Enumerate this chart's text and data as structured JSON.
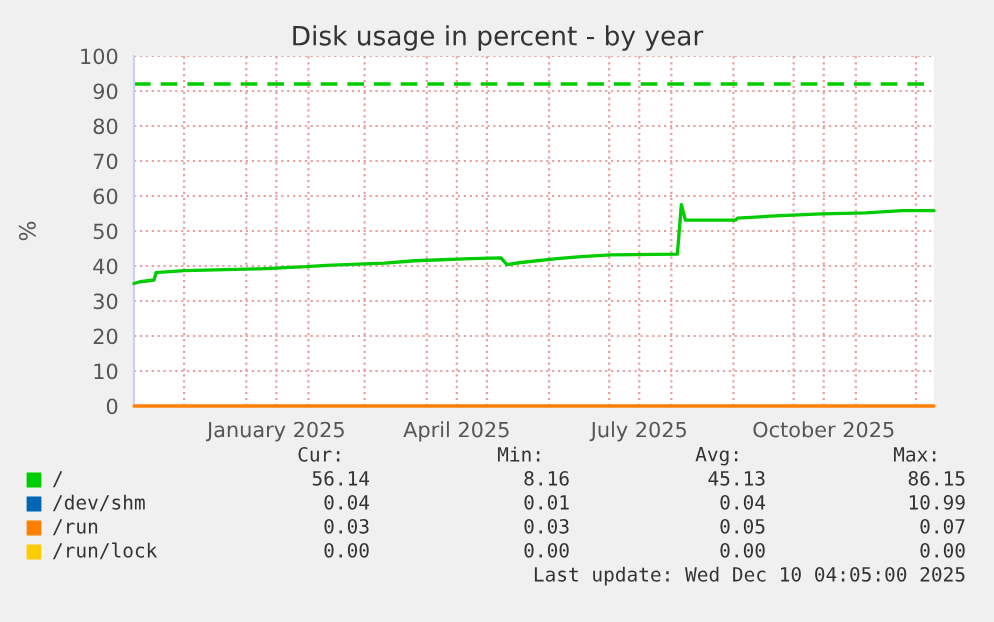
{
  "chart_data": {
    "type": "line",
    "title": "Disk usage in percent - by year",
    "ylabel": "%",
    "xlim": [
      "2024-11-06",
      "2025-12-10"
    ],
    "ylim": [
      0,
      100
    ],
    "yticks": [
      0,
      10,
      20,
      30,
      40,
      50,
      60,
      70,
      80,
      90,
      100
    ],
    "xticks": [
      {
        "value": "2024-12-01",
        "label": null
      },
      {
        "value": "2025-01-01",
        "label": null
      },
      {
        "value": "2025-01-16",
        "label": "January 2025"
      },
      {
        "value": "2025-02-01",
        "label": null
      },
      {
        "value": "2025-03-01",
        "label": null
      },
      {
        "value": "2025-04-01",
        "label": null
      },
      {
        "value": "2025-04-16",
        "label": "April 2025"
      },
      {
        "value": "2025-05-01",
        "label": null
      },
      {
        "value": "2025-06-01",
        "label": null
      },
      {
        "value": "2025-07-01",
        "label": null
      },
      {
        "value": "2025-07-16",
        "label": "July 2025"
      },
      {
        "value": "2025-08-01",
        "label": null
      },
      {
        "value": "2025-09-01",
        "label": null
      },
      {
        "value": "2025-10-01",
        "label": null
      },
      {
        "value": "2025-10-16",
        "label": "October 2025"
      },
      {
        "value": "2025-11-01",
        "label": null
      },
      {
        "value": "2025-12-01",
        "label": null
      }
    ],
    "grid": true,
    "legend": "bottom",
    "ref_lines": [
      {
        "axis": "y",
        "value": 92,
        "color": "#00cc00",
        "line_style": "dashed"
      }
    ],
    "series": [
      {
        "name": "/",
        "color": "#00cc00",
        "x": [
          "2024-11-06",
          "2024-11-09",
          "2024-11-16",
          "2024-11-17",
          "2024-12-01",
          "2025-01-08",
          "2025-01-31",
          "2025-02-10",
          "2025-03-11",
          "2025-03-26",
          "2025-04-23",
          "2025-05-08",
          "2025-05-11",
          "2025-05-18",
          "2025-06-05",
          "2025-06-17",
          "2025-07-02",
          "2025-08-04",
          "2025-08-06",
          "2025-08-08",
          "2025-09-02",
          "2025-09-03",
          "2025-09-22",
          "2025-10-15",
          "2025-11-06",
          "2025-11-24",
          "2025-12-10"
        ],
        "values": [
          35.0,
          35.5,
          36.0,
          38.1,
          38.7,
          39.2,
          39.8,
          40.2,
          40.8,
          41.5,
          42.1,
          42.3,
          40.4,
          41.0,
          42.1,
          42.7,
          43.2,
          43.4,
          57.5,
          53.1,
          53.1,
          53.7,
          54.3,
          54.9,
          55.2,
          55.8,
          55.8
        ]
      },
      {
        "name": "/dev/shm",
        "color": "#0066b3"
      },
      {
        "name": "/run",
        "color": "#ff8000",
        "x": [
          "2024-11-06",
          "2025-12-10"
        ],
        "values": [
          0,
          0
        ]
      },
      {
        "name": "/run/lock",
        "color": "#ffcc00"
      }
    ],
    "annotations": [
      "Cur:",
      "Min:",
      "Avg:",
      "Max:",
      "56.14",
      "8.16",
      "45.13",
      "86.15",
      "0.04",
      "0.01",
      "0.04",
      "10.99",
      "0.03",
      "0.03",
      "0.05",
      "0.07",
      "0.00",
      "0.00",
      "0.00",
      "0.00",
      "Last update: Wed Dec 10 04:05:00 2025"
    ]
  }
}
